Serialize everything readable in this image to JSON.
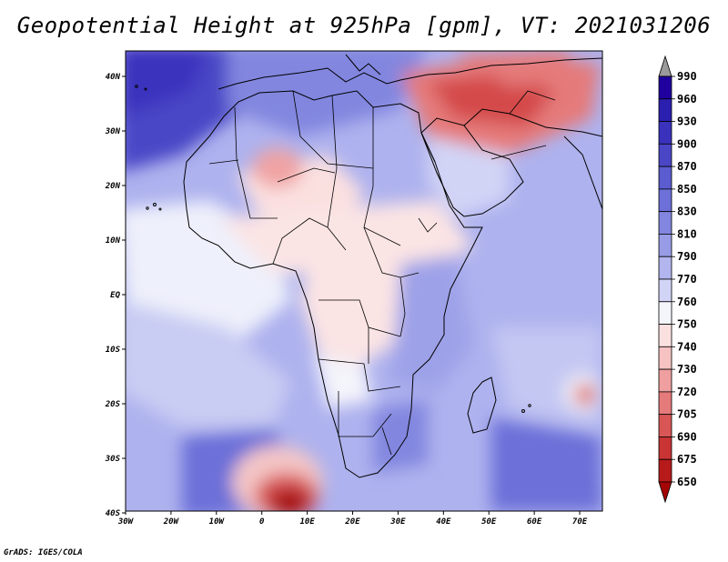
{
  "title": "Geopotential Height at 925hPa [gpm], VT: 2021031206",
  "credit": "GrADS: IGES/COLA",
  "axes": {
    "lon_ticks": [
      "30W",
      "20W",
      "10W",
      "0",
      "10E",
      "20E",
      "30E",
      "40E",
      "50E",
      "60E",
      "70E"
    ],
    "lat_ticks": [
      "40N",
      "30N",
      "20N",
      "10N",
      "EQ",
      "10S",
      "20S",
      "30S",
      "40S"
    ]
  },
  "colorbar": {
    "labels": [
      "990",
      "960",
      "930",
      "900",
      "870",
      "850",
      "830",
      "810",
      "790",
      "770",
      "760",
      "750",
      "740",
      "730",
      "720",
      "705",
      "690",
      "675",
      "650"
    ],
    "colors": [
      "#9a9a9a",
      "#1f009e",
      "#2b1fb0",
      "#3a32bd",
      "#4a46c6",
      "#5a5ccf",
      "#6c70d8",
      "#8286df",
      "#989ce6",
      "#b2b5ee",
      "#d2d4f6",
      "#f4f4fb",
      "#fbe0e0",
      "#f6c2c2",
      "#ef9f9f",
      "#e57a7a",
      "#d95656",
      "#c93434",
      "#b71a1a",
      "#a50505"
    ]
  }
}
